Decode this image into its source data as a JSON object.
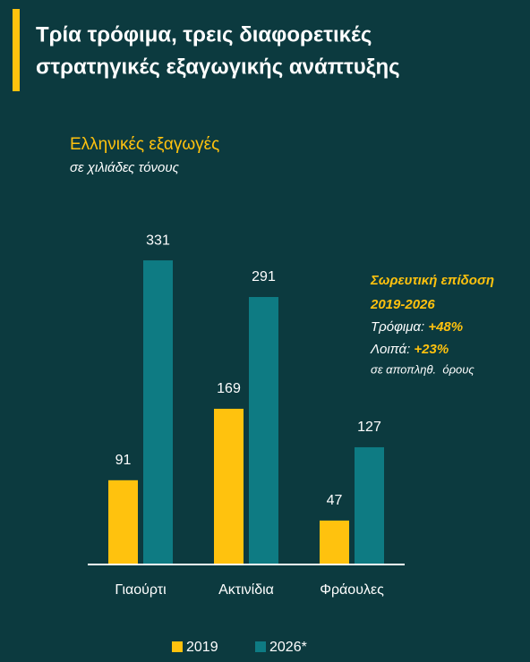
{
  "chart_data": {
    "type": "bar",
    "title": [
      "Τρία τρόφιμα, τρεις διαφορετικές",
      "στρατηγικές εξαγωγικής ανάπτυξης"
    ],
    "subtitle": "Ελληνικές εξαγωγές",
    "unit_note": "σε χιλιάδες τόνους",
    "categories": [
      "Γιαούρτι",
      "Ακτινίδια",
      "Φράουλες"
    ],
    "series": [
      {
        "name": "2019",
        "color": "#ffc20e",
        "values": [
          91,
          169,
          47
        ]
      },
      {
        "name": "2026*",
        "color": "#0e7b83",
        "values": [
          331,
          291,
          127
        ]
      }
    ],
    "annotation": {
      "title": "Σωρευτική επίδοση",
      "period": "2019-2026",
      "items": [
        {
          "label": "Τρόφιμα:",
          "value": "+48%"
        },
        {
          "label": "Λοιπά:",
          "value": "+23%"
        }
      ],
      "note": "σε αποπληθ.  όρους"
    }
  }
}
